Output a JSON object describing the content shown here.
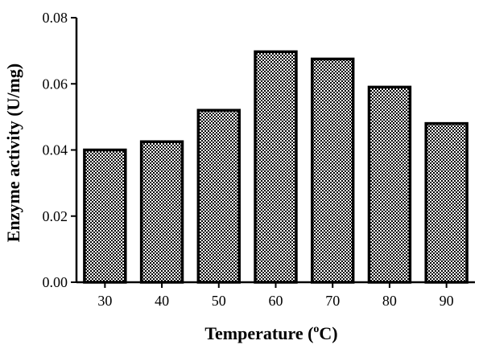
{
  "chart_data": {
    "type": "bar",
    "categories": [
      "30",
      "40",
      "50",
      "60",
      "70",
      "80",
      "90"
    ],
    "values": [
      0.04,
      0.0425,
      0.052,
      0.0697,
      0.0675,
      0.059,
      0.048
    ],
    "xlabel": "Temperature (",
    "xlabel_sup": "o",
    "xlabel_suffix": "C)",
    "ylabel": "Enzyme activity (U/mg)",
    "ylim": [
      0,
      0.08
    ],
    "yticks": [
      "0.00",
      "0.02",
      "0.04",
      "0.06",
      "0.08"
    ],
    "grid": false,
    "bar_fill": "checkered",
    "colors": {
      "bar_dark": "#000000",
      "bar_light": "#ffffff",
      "axis": "#000000"
    }
  }
}
